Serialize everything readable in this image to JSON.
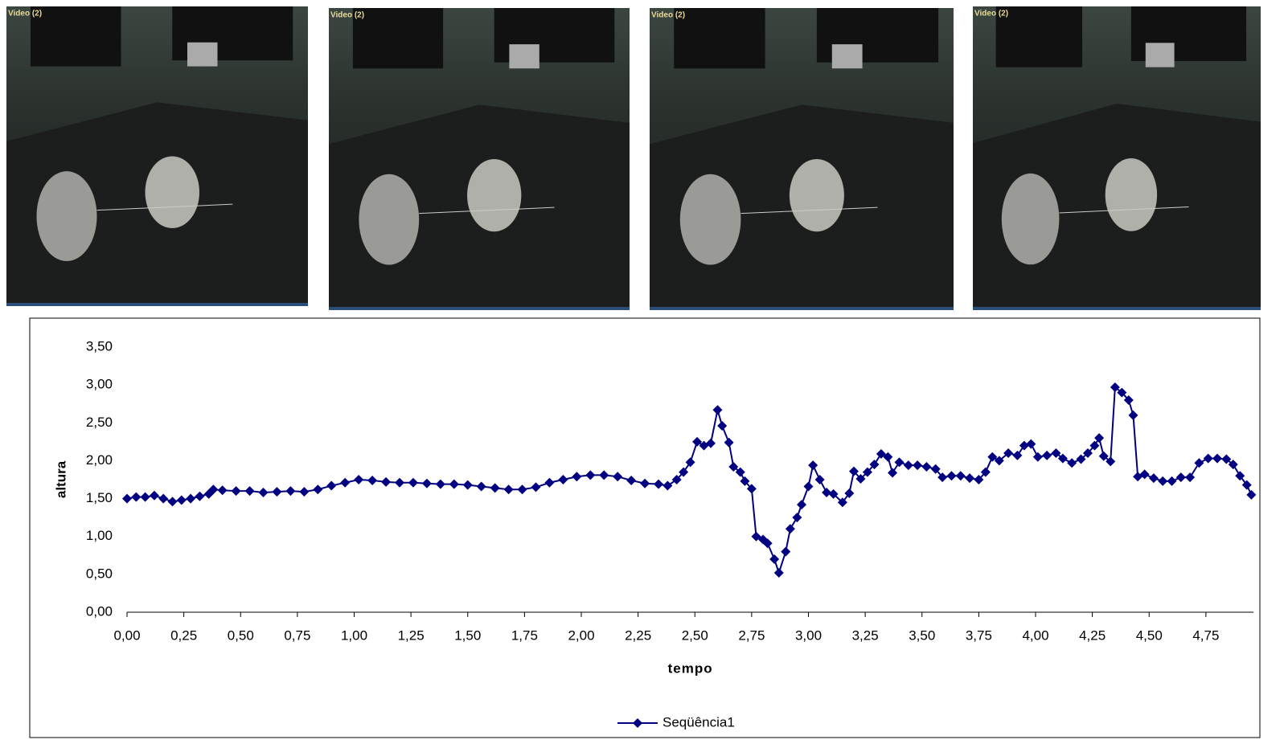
{
  "video_frames": [
    {
      "label": "Video (2)"
    },
    {
      "label": "Video (2)"
    },
    {
      "label": "Video (2)"
    },
    {
      "label": "Video (2)"
    }
  ],
  "chart_data": {
    "type": "line",
    "x_label": "tempo",
    "y_label": "altura",
    "x": [
      0,
      0.04,
      0.08,
      0.12,
      0.16,
      0.2,
      0.24,
      0.28,
      0.32,
      0.36,
      0.38,
      0.42,
      0.48,
      0.54,
      0.6,
      0.66,
      0.72,
      0.78,
      0.84,
      0.9,
      0.96,
      1.02,
      1.08,
      1.14,
      1.2,
      1.26,
      1.32,
      1.38,
      1.44,
      1.5,
      1.56,
      1.62,
      1.68,
      1.74,
      1.8,
      1.86,
      1.92,
      1.98,
      2.04,
      2.1,
      2.16,
      2.22,
      2.28,
      2.34,
      2.38,
      2.42,
      2.45,
      2.48,
      2.51,
      2.54,
      2.57,
      2.6,
      2.62,
      2.65,
      2.67,
      2.7,
      2.72,
      2.75,
      2.77,
      2.8,
      2.82,
      2.85,
      2.87,
      2.9,
      2.92,
      2.95,
      2.97,
      3.0,
      3.02,
      3.05,
      3.08,
      3.11,
      3.15,
      3.18,
      3.2,
      3.23,
      3.26,
      3.29,
      3.32,
      3.35,
      3.37,
      3.4,
      3.44,
      3.48,
      3.52,
      3.56,
      3.59,
      3.63,
      3.67,
      3.71,
      3.75,
      3.78,
      3.81,
      3.84,
      3.88,
      3.92,
      3.95,
      3.98,
      4.01,
      4.05,
      4.09,
      4.12,
      4.16,
      4.2,
      4.23,
      4.26,
      4.28,
      4.3,
      4.33,
      4.35,
      4.38,
      4.41,
      4.43,
      4.45,
      4.48,
      4.52,
      4.56,
      4.6,
      4.64,
      4.68,
      4.72,
      4.76,
      4.8,
      4.84,
      4.87,
      4.9,
      4.93,
      4.95
    ],
    "series": [
      {
        "name": "Seqüência1",
        "color": "#000080",
        "values": [
          1.5,
          1.52,
          1.52,
          1.54,
          1.5,
          1.46,
          1.48,
          1.5,
          1.53,
          1.56,
          1.62,
          1.61,
          1.6,
          1.6,
          1.58,
          1.59,
          1.6,
          1.59,
          1.62,
          1.67,
          1.71,
          1.75,
          1.74,
          1.72,
          1.71,
          1.71,
          1.7,
          1.69,
          1.69,
          1.68,
          1.66,
          1.64,
          1.62,
          1.62,
          1.65,
          1.71,
          1.75,
          1.79,
          1.81,
          1.81,
          1.79,
          1.74,
          1.7,
          1.69,
          1.67,
          1.75,
          1.85,
          1.98,
          2.25,
          2.2,
          2.23,
          2.67,
          2.46,
          2.24,
          1.92,
          1.85,
          1.73,
          1.63,
          1.0,
          0.96,
          0.91,
          0.7,
          0.52,
          0.8,
          1.1,
          1.25,
          1.42,
          1.66,
          1.94,
          1.75,
          1.58,
          1.56,
          1.45,
          1.57,
          1.86,
          1.76,
          1.85,
          1.95,
          2.09,
          2.05,
          1.84,
          1.98,
          1.94,
          1.94,
          1.92,
          1.89,
          1.78,
          1.8,
          1.8,
          1.77,
          1.75,
          1.85,
          2.05,
          2.0,
          2.1,
          2.07,
          2.2,
          2.22,
          2.05,
          2.07,
          2.1,
          2.03,
          1.97,
          2.02,
          2.1,
          2.2,
          2.3,
          2.06,
          1.99,
          2.97,
          2.9,
          2.8,
          2.6,
          1.79,
          1.82,
          1.77,
          1.73,
          1.73,
          1.78,
          1.78,
          1.97,
          2.03,
          2.03,
          2.02,
          1.95,
          1.8,
          1.68,
          1.55
        ]
      }
    ],
    "xlim": [
      0,
      4.96
    ],
    "xticks": [
      {
        "value": 0,
        "label": "0,00"
      },
      {
        "value": 0.25,
        "label": "0,25"
      },
      {
        "value": 0.5,
        "label": "0,50"
      },
      {
        "value": 0.75,
        "label": "0,75"
      },
      {
        "value": 1,
        "label": "1,00"
      },
      {
        "value": 1.25,
        "label": "1,25"
      },
      {
        "value": 1.5,
        "label": "1,50"
      },
      {
        "value": 1.75,
        "label": "1,75"
      },
      {
        "value": 2,
        "label": "2,00"
      },
      {
        "value": 2.25,
        "label": "2,25"
      },
      {
        "value": 2.5,
        "label": "2,50"
      },
      {
        "value": 2.75,
        "label": "2,75"
      },
      {
        "value": 3,
        "label": "3,00"
      },
      {
        "value": 3.25,
        "label": "3,25"
      },
      {
        "value": 3.5,
        "label": "3,50"
      },
      {
        "value": 3.75,
        "label": "3,75"
      },
      {
        "value": 4,
        "label": "4,00"
      },
      {
        "value": 4.25,
        "label": "4,25"
      },
      {
        "value": 4.5,
        "label": "4,50"
      },
      {
        "value": 4.75,
        "label": "4,75"
      }
    ],
    "ylim": [
      0,
      3.5
    ],
    "yticks": [
      {
        "value": 0,
        "label": "0,00"
      },
      {
        "value": 0.5,
        "label": "0,50"
      },
      {
        "value": 1,
        "label": "1,00"
      },
      {
        "value": 1.5,
        "label": "1,50"
      },
      {
        "value": 2,
        "label": "2,00"
      },
      {
        "value": 2.5,
        "label": "2,50"
      },
      {
        "value": 3,
        "label": "3,00"
      },
      {
        "value": 3.5,
        "label": "3,50"
      }
    ],
    "legend": "bottom"
  }
}
